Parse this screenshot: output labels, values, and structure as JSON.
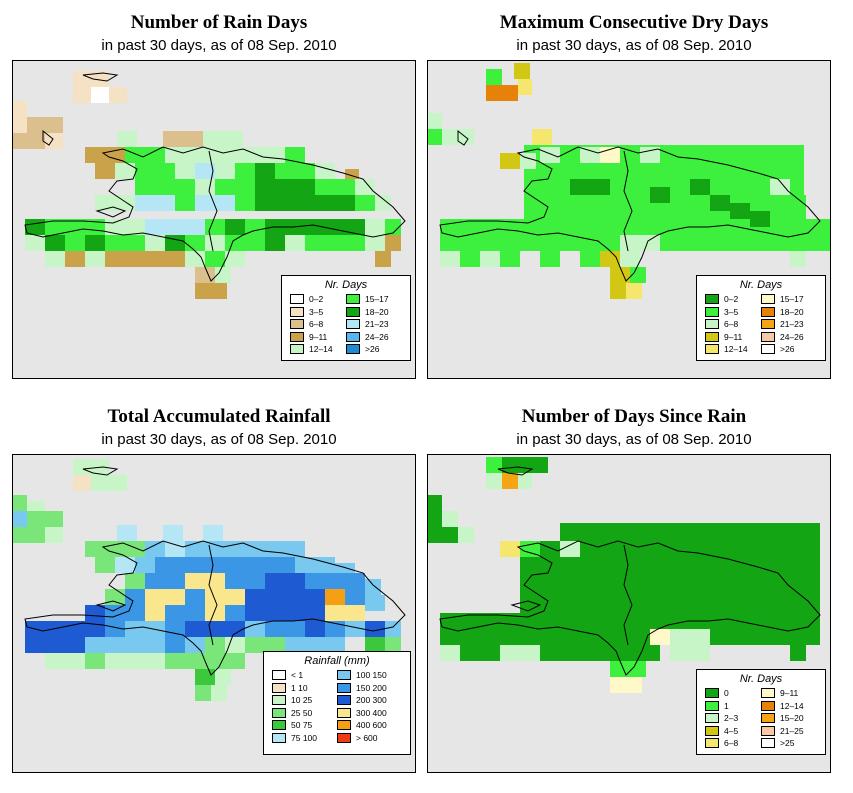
{
  "panels": [
    {
      "id": "rain-days",
      "title": "Number of Rain Days",
      "subtitle": "in past 30 days, as of  08 Sep. 2010",
      "legend": {
        "title": "Nr. Days",
        "items": [
          {
            "label": "0–2",
            "color": "#ffffff"
          },
          {
            "label": "3–5",
            "color": "#f5e2c4"
          },
          {
            "label": "6–8",
            "color": "#dbbf8c"
          },
          {
            "label": "9–11",
            "color": "#c9a24a"
          },
          {
            "label": "12–14",
            "color": "#c8f5c8"
          },
          {
            "label": "15–17",
            "color": "#3ef03e"
          },
          {
            "label": "18–20",
            "color": "#14a514"
          },
          {
            "label": "21–23",
            "color": "#b4e6f5"
          },
          {
            "label": "24–26",
            "color": "#58b4ee"
          },
          {
            "label": ">26",
            "color": "#1e8cd2"
          }
        ]
      }
    },
    {
      "id": "max-dry-days",
      "title": "Maximum Consecutive Dry Days",
      "subtitle": "in past 30 days, as of  08 Sep. 2010",
      "legend": {
        "title": "Nr. Days",
        "items": [
          {
            "label": "0–2",
            "color": "#14a514"
          },
          {
            "label": "3–5",
            "color": "#3ef03e"
          },
          {
            "label": "6–8",
            "color": "#c8f5c8"
          },
          {
            "label": "9–11",
            "color": "#d2c814"
          },
          {
            "label": "12–14",
            "color": "#f5e66e"
          },
          {
            "label": "15–17",
            "color": "#fff8c8"
          },
          {
            "label": "18–20",
            "color": "#e6820a"
          },
          {
            "label": "21–23",
            "color": "#f5a514"
          },
          {
            "label": "24–26",
            "color": "#fac8a0"
          },
          {
            "label": ">26",
            "color": "#ffffff"
          }
        ]
      }
    },
    {
      "id": "total-rainfall",
      "title": "Total Accumulated Rainfall",
      "subtitle": "in past 30 days, as of  08 Sep. 2010",
      "legend": {
        "title": "Rainfall (mm)",
        "items": [
          {
            "label": "< 1",
            "color": "#ffffff"
          },
          {
            "label": "1    10",
            "color": "#f5e2c4"
          },
          {
            "label": "10    25",
            "color": "#c8f5c8"
          },
          {
            "label": "25    50",
            "color": "#7ae67a"
          },
          {
            "label": "50    75",
            "color": "#3cc83c"
          },
          {
            "label": "75    100",
            "color": "#b4e6f5"
          },
          {
            "label": "100  150",
            "color": "#78c8f0"
          },
          {
            "label": "150  200",
            "color": "#3c96e6"
          },
          {
            "label": "200  300",
            "color": "#1e5ad2"
          },
          {
            "label": "300  400",
            "color": "#fae68c"
          },
          {
            "label": "400  600",
            "color": "#f5a014"
          },
          {
            "label": "> 600",
            "color": "#f03c14"
          }
        ]
      }
    },
    {
      "id": "days-since-rain",
      "title": "Number of Days Since Rain",
      "subtitle": "in past 30 days, as of  08 Sep. 2010",
      "legend": {
        "title": "Nr. Days",
        "items": [
          {
            "label": "0",
            "color": "#14a514"
          },
          {
            "label": "1",
            "color": "#3ef03e"
          },
          {
            "label": "2–3",
            "color": "#c8f5c8"
          },
          {
            "label": "4–5",
            "color": "#d2c814"
          },
          {
            "label": "6–8",
            "color": "#f5e66e"
          },
          {
            "label": "9–11",
            "color": "#fff8c8"
          },
          {
            "label": "12–14",
            "color": "#e6820a"
          },
          {
            "label": "15–20",
            "color": "#f5a514"
          },
          {
            "label": "21–25",
            "color": "#fac8a0"
          },
          {
            "label": ">25",
            "color": "#ffffff"
          }
        ]
      }
    }
  ]
}
